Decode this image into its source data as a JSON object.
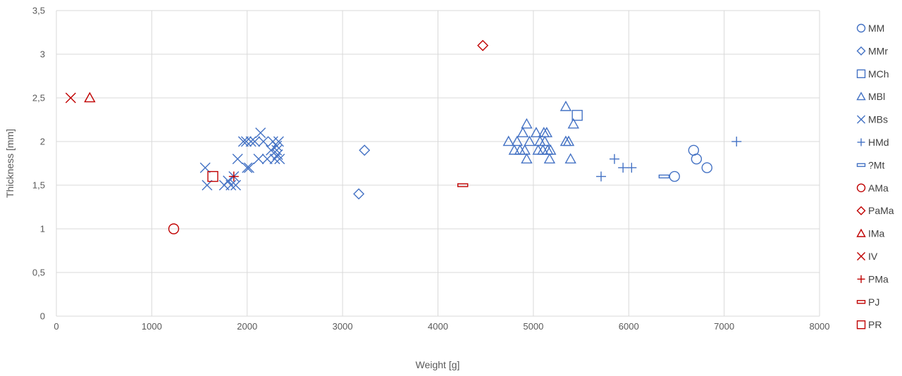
{
  "chart_data": {
    "type": "scatter",
    "title": "",
    "xlabel": "Weight [g]",
    "ylabel": "Thickness [mm]",
    "xlim": [
      0,
      8000
    ],
    "ylim": [
      0,
      3.5
    ],
    "xticks": [
      0,
      1000,
      2000,
      3000,
      4000,
      5000,
      6000,
      7000,
      8000
    ],
    "yticks": [
      0,
      0.5,
      1,
      1.5,
      2,
      2.5,
      3,
      3.5
    ],
    "xtick_labels": [
      "0",
      "1000",
      "2000",
      "3000",
      "4000",
      "5000",
      "6000",
      "7000",
      "8000"
    ],
    "ytick_labels": [
      "0",
      "0,5",
      "1",
      "1,5",
      "2",
      "2,5",
      "3",
      "3,5"
    ],
    "grid": true,
    "legend_position": "right",
    "series": [
      {
        "name": "MM",
        "marker": "circle",
        "color": "#4472c4",
        "points": [
          [
            6480,
            1.6
          ],
          [
            6680,
            1.9
          ],
          [
            6710,
            1.8
          ],
          [
            6820,
            1.7
          ]
        ]
      },
      {
        "name": "MMr",
        "marker": "diamond",
        "color": "#4472c4",
        "points": [
          [
            3170,
            1.4
          ],
          [
            3230,
            1.9
          ]
        ]
      },
      {
        "name": "MCh",
        "marker": "square",
        "color": "#4472c4",
        "points": [
          [
            5460,
            2.3
          ]
        ]
      },
      {
        "name": "MBl",
        "marker": "triangle",
        "color": "#4472c4",
        "points": [
          [
            4740,
            2.0
          ],
          [
            4800,
            1.9
          ],
          [
            4830,
            2.0
          ],
          [
            4860,
            1.9
          ],
          [
            4890,
            2.1
          ],
          [
            4910,
            1.9
          ],
          [
            4930,
            2.2
          ],
          [
            4930,
            1.8
          ],
          [
            4960,
            2.0
          ],
          [
            5030,
            2.1
          ],
          [
            5050,
            1.9
          ],
          [
            5070,
            2.0
          ],
          [
            5100,
            1.9
          ],
          [
            5110,
            2.1
          ],
          [
            5120,
            2.0
          ],
          [
            5140,
            2.1
          ],
          [
            5150,
            1.9
          ],
          [
            5170,
            1.8
          ],
          [
            5180,
            1.9
          ],
          [
            5340,
            2.0
          ],
          [
            5340,
            2.4
          ],
          [
            5370,
            2.0
          ],
          [
            5390,
            1.8
          ],
          [
            5420,
            2.2
          ]
        ]
      },
      {
        "name": "MBs",
        "marker": "x",
        "color": "#4472c4",
        "points": [
          [
            1560,
            1.7
          ],
          [
            1580,
            1.5
          ],
          [
            1760,
            1.5
          ],
          [
            1800,
            1.55
          ],
          [
            1830,
            1.5
          ],
          [
            1860,
            1.6
          ],
          [
            1880,
            1.5
          ],
          [
            1900,
            1.8
          ],
          [
            1960,
            2.0
          ],
          [
            1990,
            2.0
          ],
          [
            2000,
            1.7
          ],
          [
            2020,
            1.7
          ],
          [
            2040,
            2.0
          ],
          [
            2080,
            2.0
          ],
          [
            2120,
            1.8
          ],
          [
            2140,
            2.1
          ],
          [
            2170,
            2.0
          ],
          [
            2210,
            1.8
          ],
          [
            2250,
            1.9
          ],
          [
            2270,
            2.0
          ],
          [
            2290,
            1.8
          ],
          [
            2310,
            1.9
          ],
          [
            2320,
            1.85
          ],
          [
            2330,
            2.0
          ],
          [
            2340,
            1.8
          ],
          [
            2310,
            1.95
          ]
        ]
      },
      {
        "name": "HMd",
        "marker": "plus",
        "color": "#4472c4",
        "points": [
          [
            5710,
            1.6
          ],
          [
            5850,
            1.8
          ],
          [
            5940,
            1.7
          ],
          [
            6030,
            1.7
          ],
          [
            7130,
            2.0
          ]
        ]
      },
      {
        "name": "?Mt",
        "marker": "dash",
        "color": "#4472c4",
        "points": [
          [
            6370,
            1.6
          ]
        ]
      },
      {
        "name": "AMa",
        "marker": "circle",
        "color": "#c00000",
        "points": [
          [
            1230,
            1.0
          ]
        ]
      },
      {
        "name": "PaMa",
        "marker": "diamond",
        "color": "#c00000",
        "points": [
          [
            4470,
            3.1
          ]
        ]
      },
      {
        "name": "IMa",
        "marker": "triangle",
        "color": "#c00000",
        "points": [
          [
            350,
            2.5
          ]
        ]
      },
      {
        "name": "IV",
        "marker": "x",
        "color": "#c00000",
        "points": [
          [
            150,
            2.5
          ]
        ]
      },
      {
        "name": "PMa",
        "marker": "plus",
        "color": "#c00000",
        "points": [
          [
            1860,
            1.6
          ]
        ]
      },
      {
        "name": "PJ",
        "marker": "dash",
        "color": "#c00000",
        "points": [
          [
            4260,
            1.5
          ]
        ]
      },
      {
        "name": "PR",
        "marker": "square",
        "color": "#c00000",
        "points": [
          [
            1640,
            1.6
          ]
        ]
      }
    ]
  }
}
